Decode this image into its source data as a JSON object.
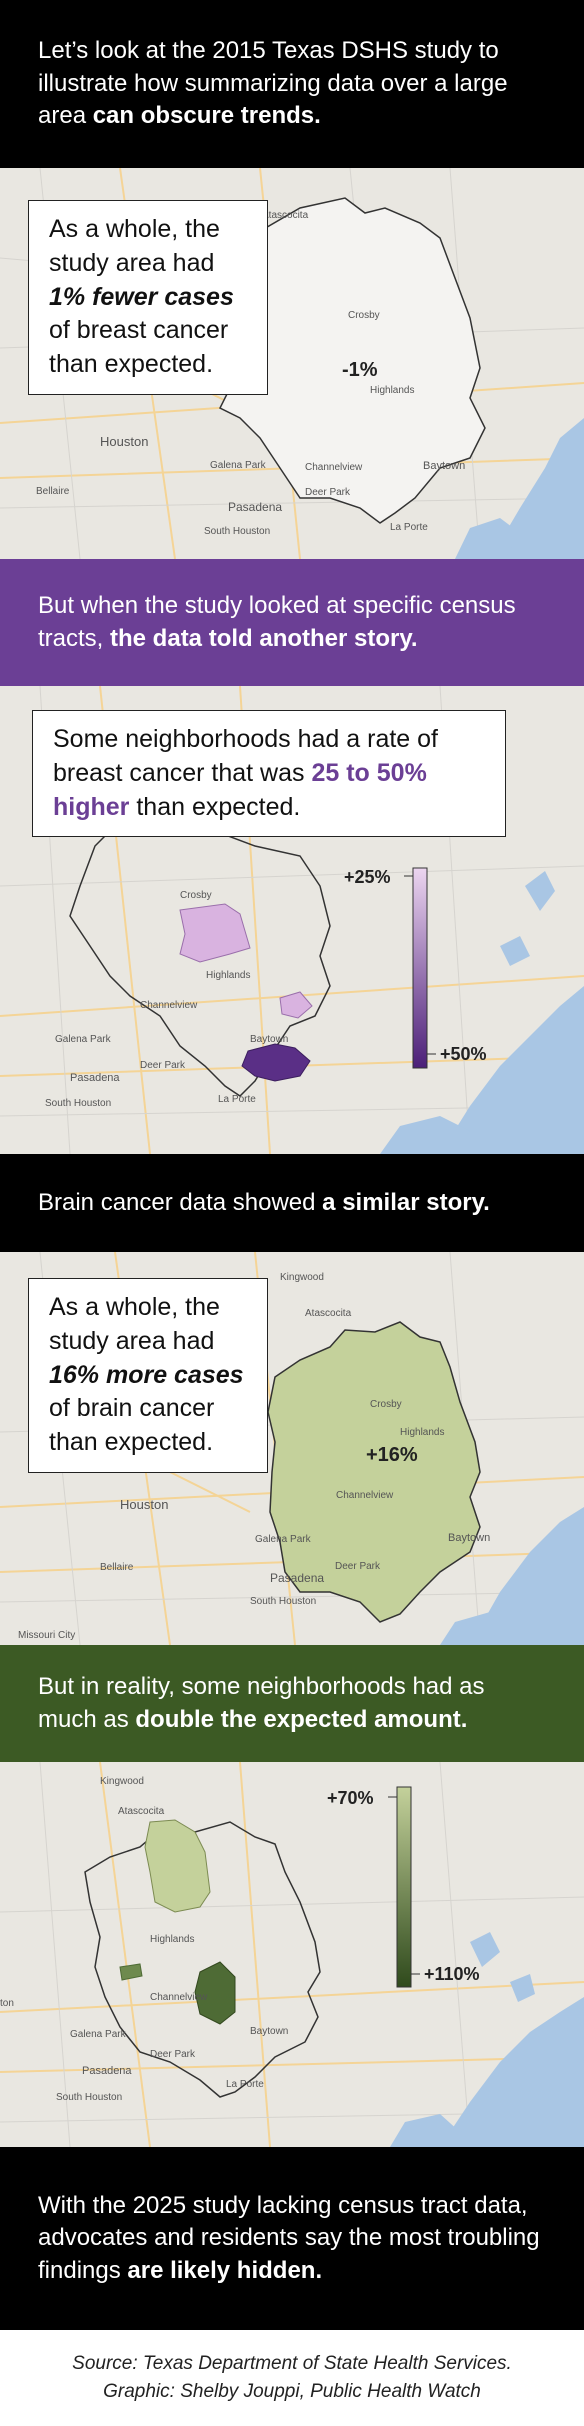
{
  "intro": {
    "pre": "Let’s look at the 2015 Texas DSHS study to illustrate how summarizing data over a large area ",
    "bold": "can obscure trends."
  },
  "breast_overall": {
    "callout": [
      "As a whole, the",
      "study area had",
      "1% fewer cases",
      "of breast cancer",
      "than expected."
    ],
    "value_label": "-1%"
  },
  "breast_tracts_band": {
    "pre": "But when the study looked at specific census tracts, ",
    "bold": "the data told another story."
  },
  "breast_tracts": {
    "callout_pre": "Some neighborhoods had a rate of breast cancer that was ",
    "callout_highlight": "25 to 50% higher",
    "callout_post": " than expected.",
    "legend_low": "+25%",
    "legend_high": "+50%"
  },
  "brain_band": {
    "pre": "Brain cancer data showed ",
    "bold": "a similar story."
  },
  "brain_overall": {
    "callout": [
      "As a whole, the",
      "study area had",
      "16% more cases",
      "of brain cancer",
      "than expected."
    ],
    "value_label": "+16%"
  },
  "brain_tracts_band": {
    "pre": "But in reality, some neighborhoods had as much as ",
    "bold": "double the expected amount."
  },
  "brain_tracts": {
    "legend_low": "+70%",
    "legend_high": "+110%"
  },
  "closing": {
    "pre": "With the 2025 study lacking census tract data, advocates and residents say the most troubling findings ",
    "bold": "are likely hidden."
  },
  "source": {
    "line1": "Source: Texas Department of State Health Services.",
    "line2": "Graphic: Shelby Jouppi, Public Health Watch"
  },
  "map_labels": {
    "atascocita": "Atascocita",
    "crosby": "Crosby",
    "highlands": "Highlands",
    "channelview": "Channelview",
    "houston": "Houston",
    "galena_park": "Galena Park",
    "deer_park": "Deer Park",
    "pasadena": "Pasadena",
    "baytown": "Baytown",
    "south_houston": "South Houston",
    "la_porte": "La Porte",
    "bellaire": "Bellaire",
    "kingwood": "Kingwood",
    "ton": "ton",
    "missouri_city": "Missouri City"
  },
  "colors": {
    "purple_accent": "#6b3f95",
    "purple_light": "#d9b3e0",
    "purple_dark": "#5a2f86",
    "green_band": "#3c5a24",
    "green_fill": "#c4d19b",
    "green_dark": "#4e6b35",
    "overall_fill": "#f4f3f1"
  },
  "chart_data": [
    {
      "type": "map",
      "title": "",
      "series": [
        {
          "name": "",
          "values": [
            -1
          ]
        }
      ],
      "region_value_percent": -1
    },
    {
      "type": "map",
      "title": "",
      "legend_range_percent": [
        25,
        50
      ]
    },
    {
      "type": "map",
      "title": "",
      "series": [
        {
          "name": "",
          "values": [
            16
          ]
        }
      ],
      "region_value_percent": 16
    },
    {
      "type": "map",
      "title": "",
      "legend_range_percent": [
        70,
        110
      ]
    }
  ]
}
